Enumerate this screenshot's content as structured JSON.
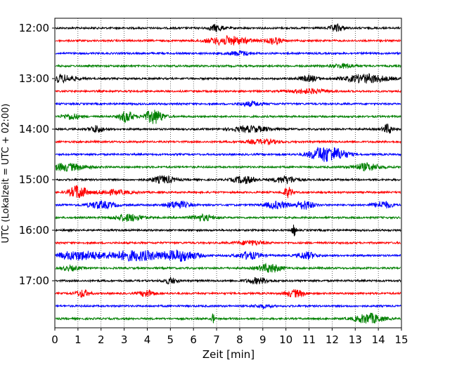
{
  "chart_data": {
    "type": "line",
    "title": "",
    "xlabel": "Zeit  [min]",
    "ylabel": "UTC (Lokalzeit = UTC + 02:00)",
    "xlim": [
      0,
      15
    ],
    "x_ticks": [
      0,
      1,
      2,
      3,
      4,
      5,
      6,
      7,
      8,
      9,
      10,
      11,
      12,
      13,
      14,
      15
    ],
    "x_tick_labels": [
      "0",
      "1",
      "2",
      "3",
      "4",
      "5",
      "6",
      "7",
      "8",
      "9",
      "10",
      "11",
      "12",
      "13",
      "14",
      "15"
    ],
    "y_tick_labels": [
      "12:00",
      "13:00",
      "14:00",
      "15:00",
      "16:00",
      "17:00"
    ],
    "y_tick_traces": [
      0,
      4,
      8,
      12,
      16,
      20
    ],
    "grid": "vertical dotted",
    "trace_colors": [
      "#000000",
      "#ff0000",
      "#0000ff",
      "#008000"
    ],
    "traces_per_hour": 4,
    "series": [
      {
        "start": "12:00",
        "bursts": [
          [
            7.0,
            0.3,
            5
          ],
          [
            12.2,
            0.3,
            5
          ]
        ]
      },
      {
        "start": "12:15",
        "bursts": [
          [
            7.5,
            0.9,
            6
          ],
          [
            9.5,
            0.3,
            5
          ]
        ]
      },
      {
        "start": "12:30",
        "bursts": [
          [
            8.0,
            0.5,
            3
          ]
        ]
      },
      {
        "start": "12:45",
        "bursts": [
          [
            12.5,
            0.5,
            3
          ]
        ]
      },
      {
        "start": "13:00",
        "bursts": [
          [
            0.3,
            0.6,
            5
          ],
          [
            13.5,
            0.9,
            6
          ],
          [
            11.0,
            0.4,
            4
          ]
        ]
      },
      {
        "start": "13:15",
        "bursts": [
          [
            11.0,
            0.8,
            3
          ]
        ]
      },
      {
        "start": "13:30",
        "bursts": [
          [
            8.5,
            0.5,
            3
          ]
        ]
      },
      {
        "start": "13:45",
        "bursts": [
          [
            3.1,
            0.3,
            8
          ],
          [
            4.3,
            0.4,
            10
          ],
          [
            0.7,
            0.4,
            4
          ]
        ]
      },
      {
        "start": "14:00",
        "bursts": [
          [
            1.8,
            0.3,
            5
          ],
          [
            8.5,
            0.8,
            4
          ],
          [
            14.4,
            0.2,
            7
          ]
        ]
      },
      {
        "start": "14:15",
        "bursts": [
          [
            9.0,
            0.7,
            3
          ]
        ]
      },
      {
        "start": "14:30",
        "bursts": [
          [
            11.6,
            0.6,
            10
          ],
          [
            12.3,
            0.5,
            5
          ]
        ]
      },
      {
        "start": "14:45",
        "bursts": [
          [
            0.5,
            0.9,
            5
          ],
          [
            13.5,
            0.6,
            5
          ]
        ]
      },
      {
        "start": "15:00",
        "bursts": [
          [
            4.7,
            0.5,
            5
          ],
          [
            8.2,
            0.5,
            5
          ],
          [
            10.0,
            0.5,
            5
          ]
        ]
      },
      {
        "start": "15:15",
        "bursts": [
          [
            1.0,
            0.35,
            10
          ],
          [
            10.1,
            0.2,
            7
          ],
          [
            2.5,
            0.8,
            3
          ]
        ]
      },
      {
        "start": "15:30",
        "bursts": [
          [
            2.0,
            0.6,
            5
          ],
          [
            5.3,
            0.5,
            5
          ],
          [
            9.6,
            0.5,
            5
          ],
          [
            10.8,
            0.4,
            6
          ],
          [
            14.2,
            0.4,
            5
          ]
        ]
      },
      {
        "start": "15:45",
        "bursts": [
          [
            3.2,
            0.6,
            5
          ],
          [
            6.4,
            0.5,
            4
          ]
        ]
      },
      {
        "start": "16:00",
        "bursts": [
          [
            10.35,
            0.08,
            10
          ]
        ]
      },
      {
        "start": "16:15",
        "bursts": [
          [
            8.5,
            0.6,
            3
          ]
        ]
      },
      {
        "start": "16:30",
        "bursts": [
          [
            1.0,
            1.0,
            6
          ],
          [
            3.5,
            1.3,
            7
          ],
          [
            5.5,
            0.7,
            7
          ],
          [
            8.4,
            0.5,
            5
          ],
          [
            10.9,
            0.4,
            5
          ]
        ]
      },
      {
        "start": "16:45",
        "bursts": [
          [
            9.3,
            0.5,
            6
          ],
          [
            0.7,
            0.4,
            3
          ]
        ]
      },
      {
        "start": "17:00",
        "bursts": [
          [
            8.8,
            0.5,
            4
          ],
          [
            5.0,
            0.3,
            4
          ]
        ]
      },
      {
        "start": "17:15",
        "bursts": [
          [
            1.2,
            0.3,
            5
          ],
          [
            4.0,
            0.3,
            5
          ],
          [
            10.4,
            0.4,
            5
          ]
        ]
      },
      {
        "start": "17:30",
        "bursts": [
          [
            9.0,
            0.4,
            2
          ]
        ]
      },
      {
        "start": "17:45",
        "bursts": [
          [
            6.85,
            0.06,
            8
          ],
          [
            13.6,
            0.6,
            7
          ]
        ]
      }
    ]
  }
}
